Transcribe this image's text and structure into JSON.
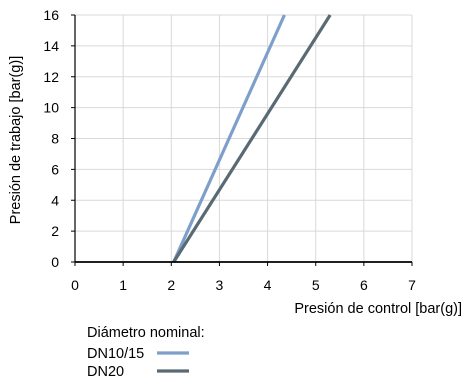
{
  "chart_data": {
    "type": "line",
    "xlabel": "Presión de control [bar(g)]",
    "ylabel": "Presión de trabajo [bar(g)]",
    "xlim": [
      0,
      7
    ],
    "ylim": [
      0,
      16
    ],
    "x_ticks": [
      0,
      1,
      2,
      3,
      4,
      5,
      6,
      7
    ],
    "y_ticks": [
      0,
      2,
      4,
      6,
      8,
      10,
      12,
      14,
      16
    ],
    "grid": true,
    "legend": {
      "title": "Diámetro nominal:",
      "placement": "bottom"
    },
    "series": [
      {
        "name": "DN10/15",
        "color": "#7f9fcb",
        "x": [
          2.05,
          4.35
        ],
        "y": [
          0,
          16
        ]
      },
      {
        "name": "DN20",
        "color": "#5a6a74",
        "x": [
          2.05,
          5.3
        ],
        "y": [
          0,
          16
        ]
      }
    ]
  }
}
